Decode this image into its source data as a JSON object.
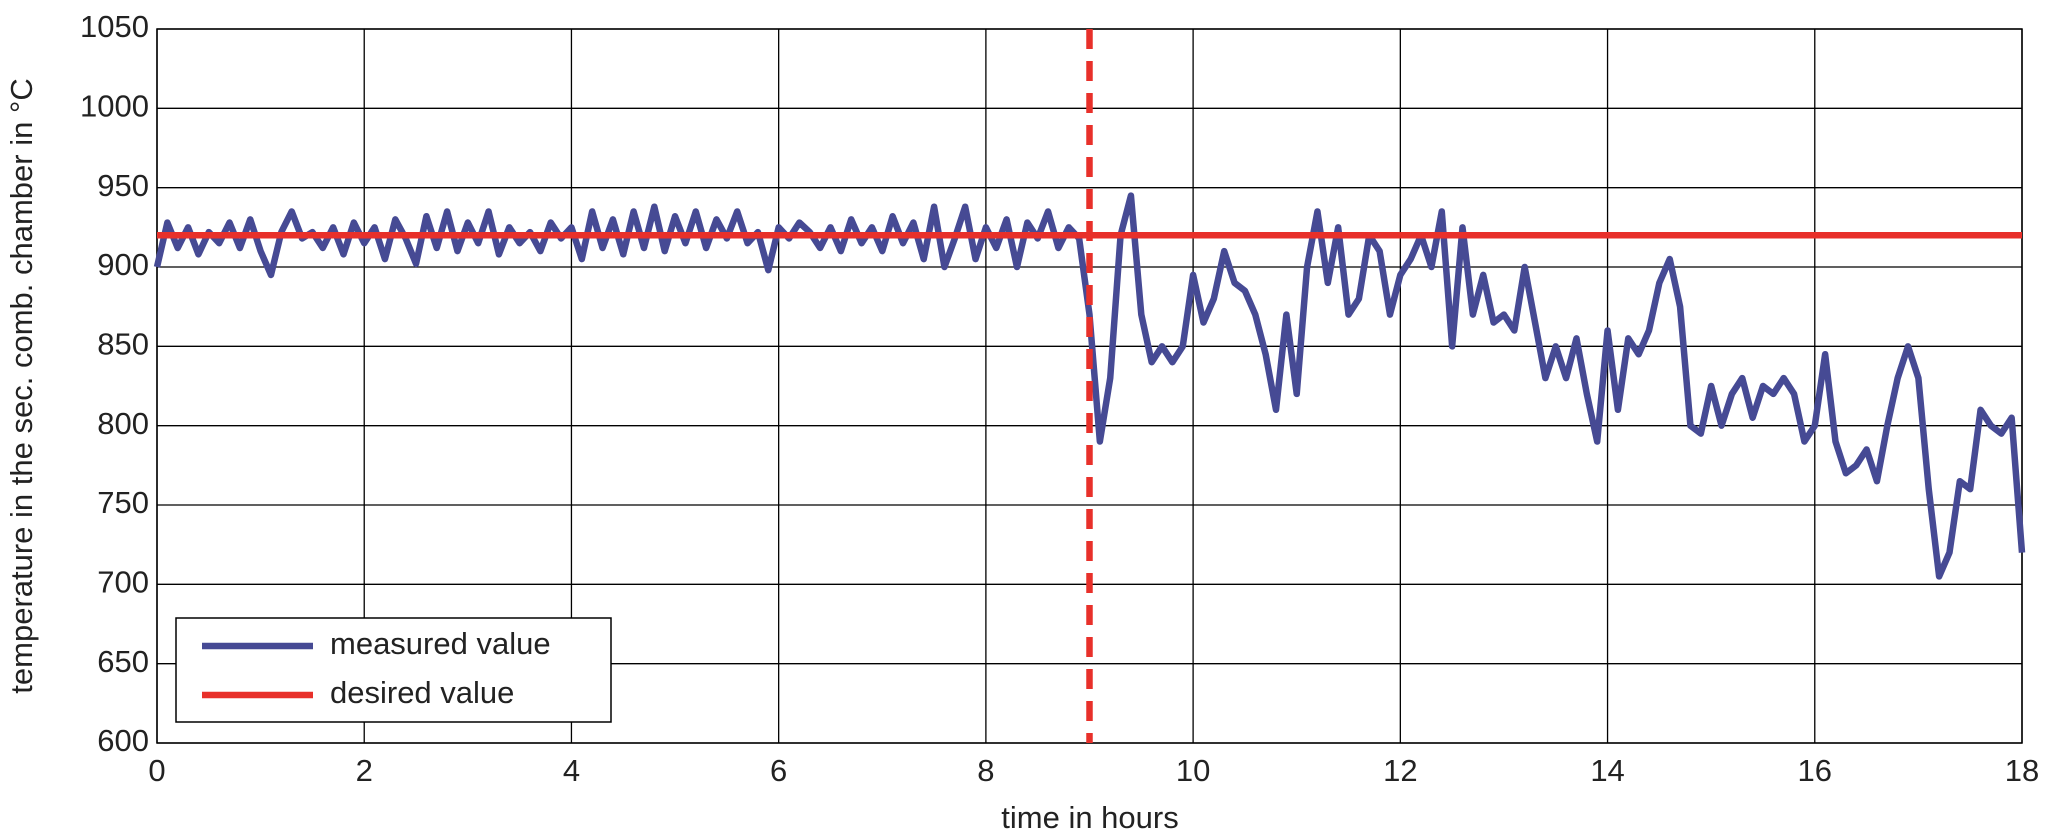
{
  "chart_data": {
    "type": "line",
    "xlabel": "time in hours",
    "ylabel": "temperature in the sec. comb. chamber in °C",
    "xlim": [
      0,
      18
    ],
    "xticks": [
      0,
      2,
      4,
      6,
      8,
      10,
      12,
      14,
      16,
      18
    ],
    "ylim": [
      600,
      1050
    ],
    "yticks": [
      600,
      650,
      700,
      750,
      800,
      850,
      900,
      950,
      1000,
      1050
    ],
    "grid": true,
    "legend": "lower left",
    "vline": {
      "x": 9,
      "color": "#e8302a",
      "dashed": true
    },
    "series": [
      {
        "name": "measured value",
        "color": "#464a94",
        "x": [
          0,
          0.1,
          0.2,
          0.3,
          0.4,
          0.5,
          0.6,
          0.7,
          0.8,
          0.9,
          1,
          1.1,
          1.2,
          1.3,
          1.4,
          1.5,
          1.6,
          1.7,
          1.8,
          1.9,
          2,
          2.1,
          2.2,
          2.3,
          2.4,
          2.5,
          2.6,
          2.7,
          2.8,
          2.9,
          3,
          3.1,
          3.2,
          3.3,
          3.4,
          3.5,
          3.6,
          3.7,
          3.8,
          3.9,
          4,
          4.1,
          4.2,
          4.3,
          4.4,
          4.5,
          4.6,
          4.7,
          4.8,
          4.9,
          5,
          5.1,
          5.2,
          5.3,
          5.4,
          5.5,
          5.6,
          5.7,
          5.8,
          5.9,
          6,
          6.1,
          6.2,
          6.3,
          6.4,
          6.5,
          6.6,
          6.7,
          6.8,
          6.9,
          7,
          7.1,
          7.2,
          7.3,
          7.4,
          7.5,
          7.6,
          7.7,
          7.8,
          7.9,
          8,
          8.1,
          8.2,
          8.3,
          8.4,
          8.5,
          8.6,
          8.7,
          8.8,
          8.9,
          9,
          9.1,
          9.2,
          9.3,
          9.4,
          9.5,
          9.6,
          9.7,
          9.8,
          9.9,
          10,
          10.1,
          10.2,
          10.3,
          10.4,
          10.5,
          10.6,
          10.7,
          10.8,
          10.9,
          11,
          11.1,
          11.2,
          11.3,
          11.4,
          11.5,
          11.6,
          11.7,
          11.8,
          11.9,
          12,
          12.1,
          12.2,
          12.3,
          12.4,
          12.5,
          12.6,
          12.7,
          12.8,
          12.9,
          13,
          13.1,
          13.2,
          13.3,
          13.4,
          13.5,
          13.6,
          13.7,
          13.8,
          13.9,
          14,
          14.1,
          14.2,
          14.3,
          14.4,
          14.5,
          14.6,
          14.7,
          14.8,
          14.9,
          15,
          15.1,
          15.2,
          15.3,
          15.4,
          15.5,
          15.6,
          15.7,
          15.8,
          15.9,
          16,
          16.1,
          16.2,
          16.3,
          16.4,
          16.5,
          16.6,
          16.7,
          16.8,
          16.9,
          17,
          17.1,
          17.2,
          17.3,
          17.4,
          17.5,
          17.6,
          17.7,
          17.8,
          17.9,
          18
        ],
        "values": [
          900,
          928,
          912,
          925,
          908,
          922,
          915,
          928,
          912,
          930,
          910,
          895,
          922,
          935,
          918,
          922,
          912,
          925,
          908,
          928,
          915,
          925,
          905,
          930,
          918,
          902,
          932,
          912,
          935,
          910,
          928,
          915,
          935,
          908,
          925,
          915,
          922,
          910,
          928,
          918,
          925,
          905,
          935,
          912,
          930,
          908,
          935,
          912,
          938,
          910,
          932,
          915,
          935,
          912,
          930,
          918,
          935,
          915,
          922,
          898,
          925,
          918,
          928,
          922,
          912,
          925,
          910,
          930,
          915,
          925,
          910,
          932,
          915,
          928,
          905,
          938,
          900,
          918,
          938,
          905,
          925,
          912,
          930,
          900,
          928,
          918,
          935,
          912,
          925,
          918,
          870,
          790,
          830,
          920,
          945,
          870,
          840,
          850,
          840,
          850,
          895,
          865,
          880,
          910,
          890,
          885,
          870,
          845,
          810,
          870,
          820,
          900,
          935,
          890,
          925,
          870,
          880,
          920,
          910,
          870,
          895,
          905,
          920,
          900,
          935,
          850,
          925,
          870,
          895,
          865,
          870,
          860,
          900,
          865,
          830,
          850,
          830,
          855,
          820,
          790,
          860,
          810,
          855,
          845,
          860,
          890,
          905,
          875,
          800,
          795,
          825,
          800,
          820,
          830,
          805,
          825,
          820,
          830,
          820,
          790,
          800,
          845,
          790,
          770,
          775,
          785,
          765,
          800,
          830,
          850,
          830,
          760,
          705,
          720,
          765,
          760,
          810,
          800,
          795,
          805,
          720
        ]
      },
      {
        "name": "desired value",
        "color": "#e8302a",
        "x": [
          0,
          18
        ],
        "values": [
          920,
          920
        ]
      }
    ]
  }
}
